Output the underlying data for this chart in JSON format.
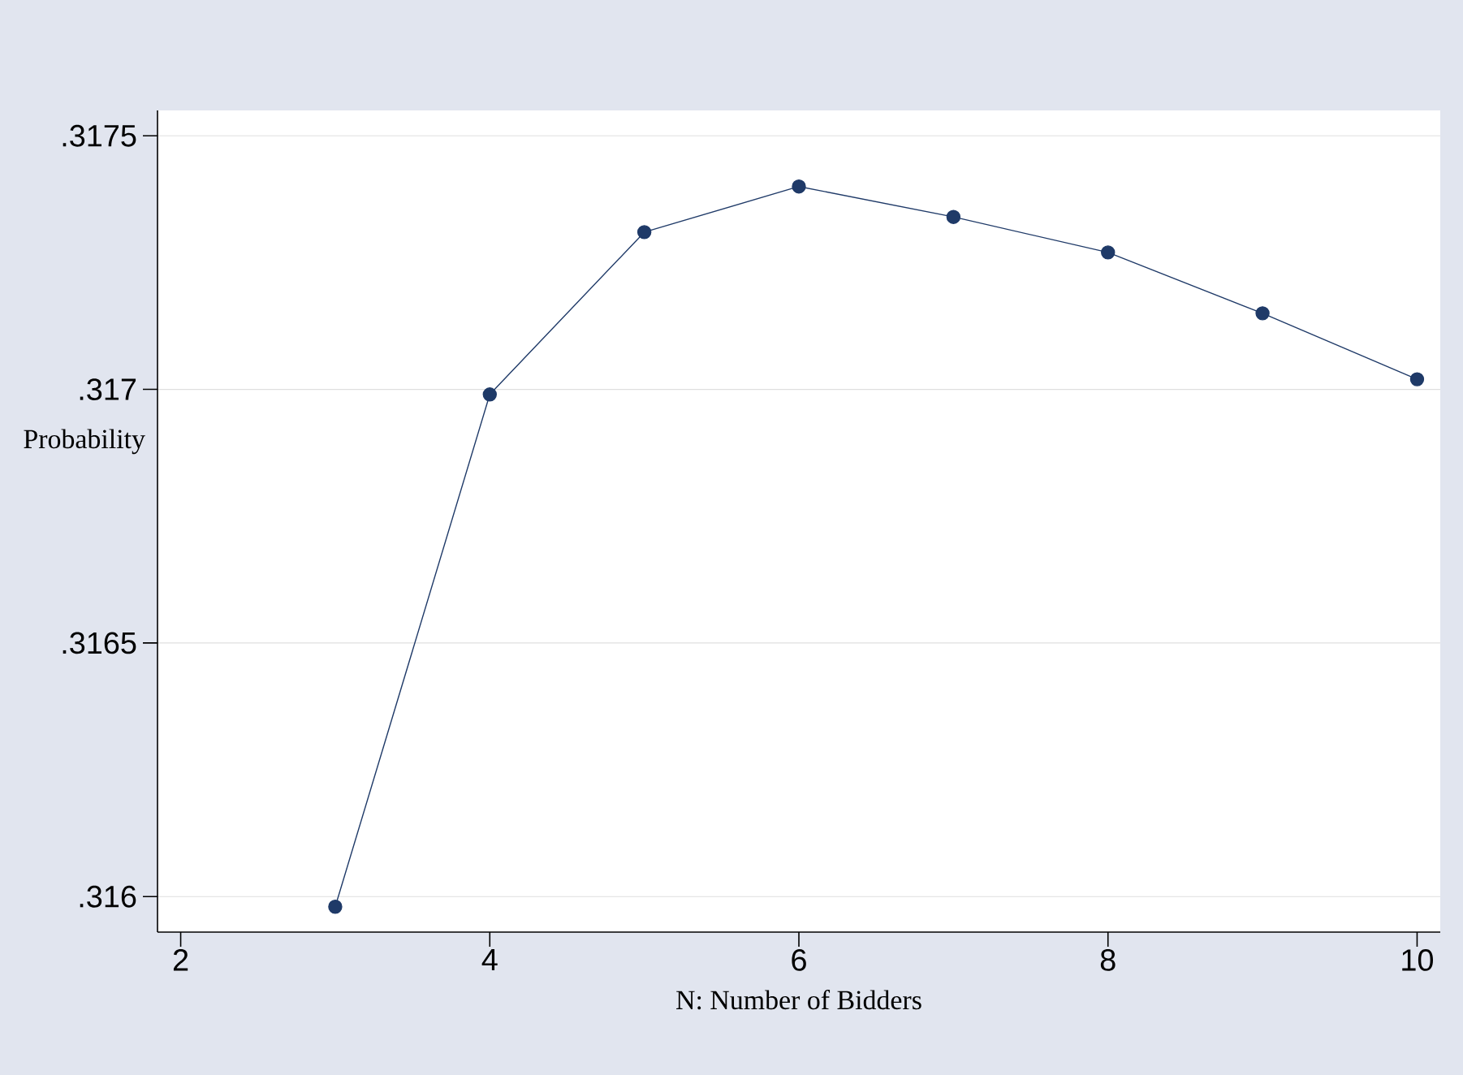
{
  "chart_data": {
    "type": "line",
    "xlabel": "N: Number of Bidders",
    "ylabel": "Probability",
    "x": [
      3,
      4,
      5,
      6,
      7,
      8,
      9,
      10
    ],
    "series": [
      {
        "color": "#1f3a68",
        "values": [
          0.31598,
          0.31699,
          0.31731,
          0.3174,
          0.31734,
          0.31727,
          0.31715,
          0.31702
        ]
      }
    ],
    "xlim": [
      1.85,
      10.15
    ],
    "ylim": [
      0.31593,
      0.31755
    ],
    "xticks": [
      2,
      4,
      6,
      8,
      10
    ],
    "yticks": [
      {
        "value": 0.316,
        "label": ".316"
      },
      {
        "value": 0.3165,
        "label": ".3165"
      },
      {
        "value": 0.317,
        "label": ".317"
      },
      {
        "value": 0.3175,
        "label": ".3175"
      }
    ],
    "grid": "y",
    "marker": "circle",
    "line_style": "solid"
  }
}
